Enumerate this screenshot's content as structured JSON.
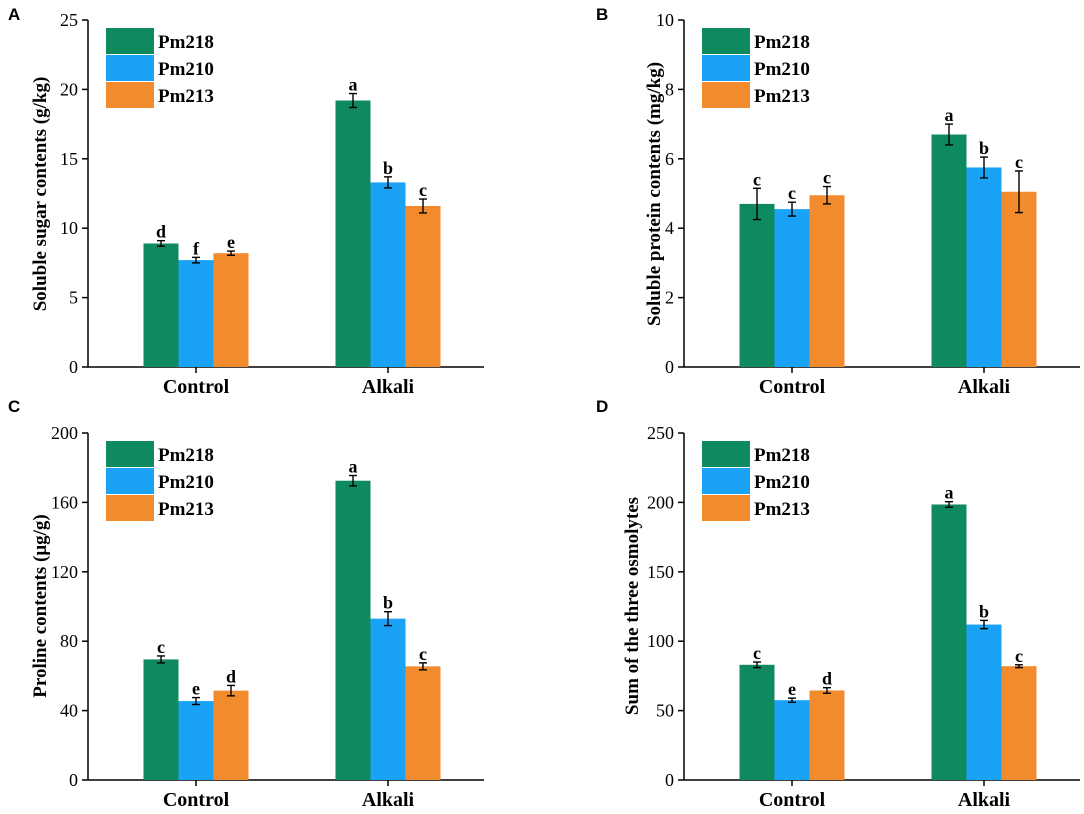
{
  "colors": {
    "Pm218": "#0f8a5f",
    "Pm210": "#1aa3f6",
    "Pm213": "#f28a2e",
    "axis": "#000000"
  },
  "chart_data": [
    {
      "type": "bar",
      "panel": "A",
      "title": "",
      "xlabel": "",
      "ylabel": "Soluble sugar contents (g/kg)",
      "categories": [
        "Control",
        "Alkali"
      ],
      "ylim": [
        0,
        25
      ],
      "yticks": [
        0,
        5,
        10,
        15,
        20,
        25
      ],
      "legend_position": "top-left",
      "series": [
        {
          "name": "Pm218",
          "values": [
            8.9,
            19.2
          ],
          "errors": [
            0.2,
            0.5
          ],
          "letters": [
            "d",
            "a"
          ]
        },
        {
          "name": "Pm210",
          "values": [
            7.7,
            13.3
          ],
          "errors": [
            0.2,
            0.4
          ],
          "letters": [
            "f",
            "b"
          ]
        },
        {
          "name": "Pm213",
          "values": [
            8.2,
            11.6
          ],
          "errors": [
            0.15,
            0.5
          ],
          "letters": [
            "e",
            "c"
          ]
        }
      ]
    },
    {
      "type": "bar",
      "panel": "B",
      "title": "",
      "xlabel": "",
      "ylabel": "Soluble protein contents (mg/kg)",
      "categories": [
        "Control",
        "Alkali"
      ],
      "ylim": [
        0,
        10
      ],
      "yticks": [
        0,
        2,
        4,
        6,
        8,
        10
      ],
      "legend_position": "top-left",
      "series": [
        {
          "name": "Pm218",
          "values": [
            4.7,
            6.7
          ],
          "errors": [
            0.45,
            0.3
          ],
          "letters": [
            "c",
            "a"
          ]
        },
        {
          "name": "Pm210",
          "values": [
            4.55,
            5.75
          ],
          "errors": [
            0.2,
            0.3
          ],
          "letters": [
            "c",
            "b"
          ]
        },
        {
          "name": "Pm213",
          "values": [
            4.95,
            5.05
          ],
          "errors": [
            0.25,
            0.6
          ],
          "letters": [
            "c",
            "c"
          ]
        }
      ]
    },
    {
      "type": "bar",
      "panel": "C",
      "title": "",
      "xlabel": "",
      "ylabel": "Proline contents (μg/g)",
      "categories": [
        "Control",
        "Alkali"
      ],
      "ylim": [
        0,
        200
      ],
      "yticks": [
        0,
        40,
        80,
        120,
        160,
        200
      ],
      "legend_position": "top-left",
      "series": [
        {
          "name": "Pm218",
          "values": [
            69.5,
            172.5
          ],
          "errors": [
            2,
            3
          ],
          "letters": [
            "c",
            "a"
          ]
        },
        {
          "name": "Pm210",
          "values": [
            45.5,
            93.0
          ],
          "errors": [
            2,
            4
          ],
          "letters": [
            "e",
            "b"
          ]
        },
        {
          "name": "Pm213",
          "values": [
            51.5,
            65.5
          ],
          "errors": [
            3,
            2
          ],
          "letters": [
            "d",
            "c"
          ]
        }
      ]
    },
    {
      "type": "bar",
      "panel": "D",
      "title": "",
      "xlabel": "",
      "ylabel": "Sum of the three osmolytes",
      "categories": [
        "Control",
        "Alkali"
      ],
      "ylim": [
        0,
        250
      ],
      "yticks": [
        0,
        50,
        100,
        150,
        200,
        250
      ],
      "legend_position": "top-left",
      "series": [
        {
          "name": "Pm218",
          "values": [
            83,
            198.5
          ],
          "errors": [
            2,
            2
          ],
          "letters": [
            "c",
            "a"
          ]
        },
        {
          "name": "Pm210",
          "values": [
            57.5,
            112
          ],
          "errors": [
            1.5,
            3
          ],
          "letters": [
            "e",
            "b"
          ]
        },
        {
          "name": "Pm213",
          "values": [
            64.5,
            82
          ],
          "errors": [
            2,
            1
          ],
          "letters": [
            "d",
            "c"
          ]
        }
      ]
    }
  ]
}
